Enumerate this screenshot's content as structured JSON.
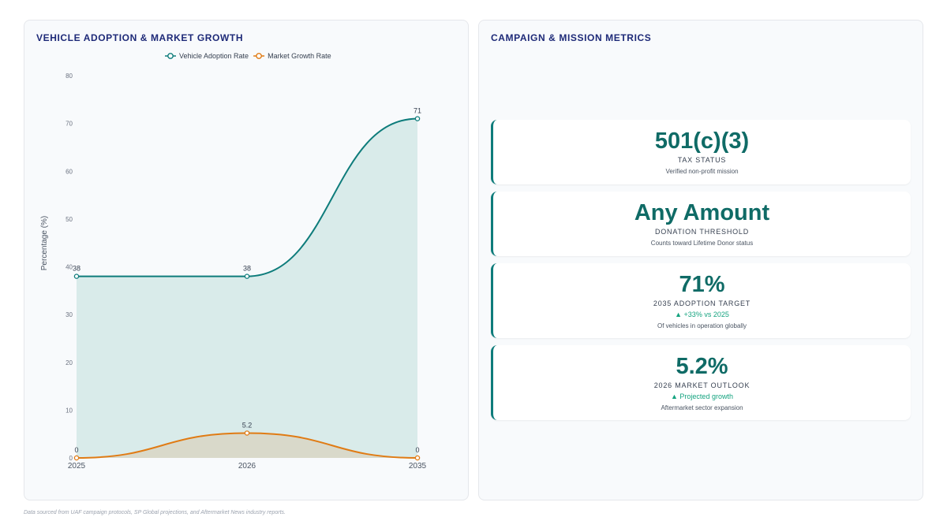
{
  "chart_panel": {
    "title": "VEHICLE ADOPTION & MARKET GROWTH"
  },
  "chart_data": {
    "type": "area",
    "title": "VEHICLE ADOPTION & MARKET GROWTH",
    "x": [
      "2025",
      "2026",
      "2035"
    ],
    "xlabel": "",
    "ylabel": "Percentage (%)",
    "ylim": [
      0,
      80
    ],
    "yticks": [
      0,
      10,
      20,
      30,
      40,
      50,
      60,
      70,
      80
    ],
    "grid": false,
    "legend_position": "top-center",
    "series": [
      {
        "name": "Vehicle Adoption Rate",
        "values": [
          38,
          38,
          71
        ],
        "color": "#0e7c7b",
        "fill": "#d3e8e6"
      },
      {
        "name": "Market Growth Rate",
        "values": [
          0,
          5.2,
          0
        ],
        "color": "#e07b14",
        "fill": "#d8d6c4"
      }
    ],
    "data_labels": {
      "Vehicle Adoption Rate": [
        "38",
        "38",
        "71"
      ],
      "Market Growth Rate": [
        "0",
        "5.2",
        "0"
      ]
    }
  },
  "metrics_panel": {
    "title": "CAMPAIGN & MISSION METRICS",
    "cards": [
      {
        "value": "501(c)(3)",
        "label": "TAX STATUS",
        "trend": "",
        "description": "Verified non-profit mission"
      },
      {
        "value": "Any Amount",
        "label": "DONATION THRESHOLD",
        "trend": "",
        "description": "Counts toward Lifetime Donor status"
      },
      {
        "value": "71%",
        "label": "2035 ADOPTION TARGET",
        "trend": "▲ +33% vs 2025",
        "description": "Of vehicles in operation globally"
      },
      {
        "value": "5.2%",
        "label": "2026 MARKET OUTLOOK",
        "trend": "▲ Projected growth",
        "description": "Aftermarket sector expansion"
      }
    ]
  },
  "footer": {
    "note": "Data sourced from UAF campaign protocols, SP Global projections, and Aftermarket News industry reports."
  }
}
